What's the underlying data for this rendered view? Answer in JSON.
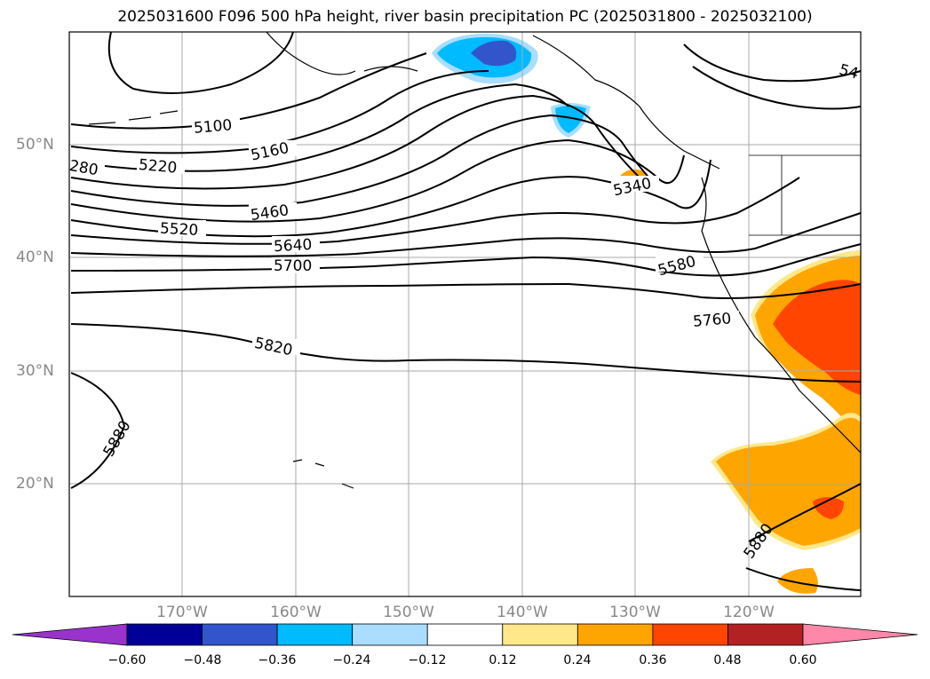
{
  "title": "2025031600 F096 500 hPa height, river basin precipitation PC (2025031800 - 2025032100)",
  "lat_labels": [
    "50°N",
    "40°N",
    "30°N",
    "20°N"
  ],
  "lon_labels": [
    "170°W",
    "160°W",
    "150°W",
    "140°W",
    "130°W",
    "120°W"
  ],
  "contour_labels": {
    "c5100": "5100",
    "c5160": "5160",
    "c5220": "5220",
    "c280": "280",
    "c5340": "5340",
    "c5460": "5460",
    "c5520": "5520",
    "c5640": "5640",
    "c5700": "5700",
    "c5580": "5580",
    "c5760": "5760",
    "c5820": "5820",
    "c5880a": "5880",
    "c5880b": "5880",
    "c54": "54"
  },
  "colorbar": {
    "ticks": [
      "−0.60",
      "−0.48",
      "−0.36",
      "−0.24",
      "−0.12",
      "0.12",
      "0.24",
      "0.36",
      "0.48",
      "0.60"
    ],
    "colors": [
      "#9933cc",
      "#000099",
      "#3355cc",
      "#00bbff",
      "#aaddff",
      "#ffffff",
      "#ffe88a",
      "#ffa500",
      "#ff4500",
      "#b22222",
      "#ff88aa"
    ]
  },
  "colors": {
    "contour": "#000000",
    "grid": "#aaaaaa",
    "coast": "#000000"
  }
}
